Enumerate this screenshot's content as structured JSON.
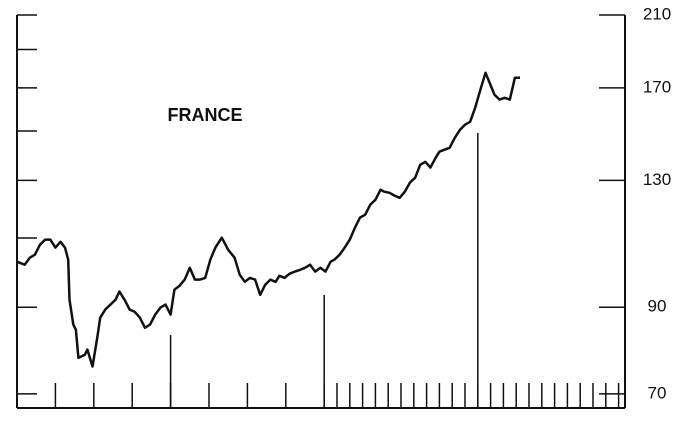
{
  "chart_data": {
    "type": "line",
    "title": "FRANCE",
    "log_scale": true,
    "color": "#111111",
    "ylim": [
      67.2,
      210
    ],
    "yticks": [
      70,
      90,
      130,
      170,
      210
    ],
    "yminorticks": [
      110,
      150,
      190
    ],
    "xlim": [
      0,
      47.5
    ],
    "xticks": [
      3,
      6,
      9,
      12,
      15,
      18,
      21,
      24,
      25,
      26,
      27,
      28,
      29,
      30,
      31,
      32,
      33,
      34,
      35,
      36,
      37,
      38,
      39,
      40,
      41,
      42,
      43,
      44,
      45,
      46,
      47
    ],
    "xmajorticks": [
      12,
      24,
      36
    ],
    "series": [
      {
        "color": "#111111",
        "x": [
          0,
          0.6,
          1.0,
          1.4,
          1.8,
          2.2,
          2.6,
          3.0,
          3.4,
          3.75,
          4.0,
          4.1,
          4.4,
          4.6,
          4.8,
          5.3,
          5.5,
          5.9,
          6.25,
          6.5,
          6.9,
          7.3,
          7.7,
          8.0,
          8.4,
          8.8,
          9.2,
          9.6,
          10.0,
          10.4,
          10.8,
          11.2,
          11.6,
          12.0,
          12.3,
          12.7,
          13.1,
          13.5,
          13.9,
          14.3,
          14.7,
          15.1,
          15.5,
          16.0,
          16.5,
          17.0,
          17.4,
          17.8,
          18.2,
          18.6,
          19.0,
          19.4,
          19.8,
          20.2,
          20.5,
          20.9,
          21.3,
          21.7,
          22.1,
          22.5,
          22.9,
          23.3,
          23.7,
          24.1,
          24.5,
          24.8,
          25.2,
          25.6,
          26.0,
          26.4,
          26.8,
          27.2,
          27.6,
          28.0,
          28.4,
          28.7,
          29.1,
          29.5,
          29.9,
          30.3,
          30.7,
          31.1,
          31.5,
          31.9,
          32.3,
          32.7,
          33.0,
          33.4,
          33.8,
          34.2,
          34.6,
          35.0,
          35.4,
          35.8,
          36.2,
          36.6,
          37.0,
          37.3,
          37.7,
          38.1,
          38.5,
          38.9,
          39.3
        ],
        "values": [
          102.7,
          101.8,
          103.9,
          104.8,
          107.9,
          109.5,
          109.5,
          107,
          108.8,
          107,
          103.3,
          92,
          85.6,
          84.3,
          77.7,
          78.4,
          79.6,
          75.8,
          82,
          87.3,
          89.4,
          90.7,
          92,
          94.2,
          92,
          89.4,
          88.8,
          87.3,
          84.8,
          85.6,
          88.1,
          89.9,
          90.7,
          88.1,
          94.7,
          95.8,
          97.5,
          100.9,
          97.5,
          97.5,
          98,
          103.3,
          107,
          110.1,
          106.3,
          103.9,
          98.9,
          96.9,
          98,
          97.5,
          93.3,
          96.1,
          97.5,
          96.9,
          98.6,
          98,
          99.2,
          99.8,
          100.3,
          100.9,
          101.8,
          99.8,
          100.9,
          99.8,
          102.7,
          103.3,
          104.8,
          107,
          109.5,
          113.3,
          116.7,
          117.7,
          121.2,
          122.9,
          126.5,
          125.8,
          125.4,
          124.4,
          123.6,
          125.8,
          129.2,
          131,
          136,
          137.2,
          134.9,
          138.8,
          141.3,
          142.1,
          142.9,
          147.1,
          150.5,
          152.8,
          154.1,
          160.5,
          169.1,
          177.6,
          171.4,
          166.7,
          164.3,
          165.2,
          164.3,
          175.1,
          175.1
        ]
      }
    ]
  }
}
